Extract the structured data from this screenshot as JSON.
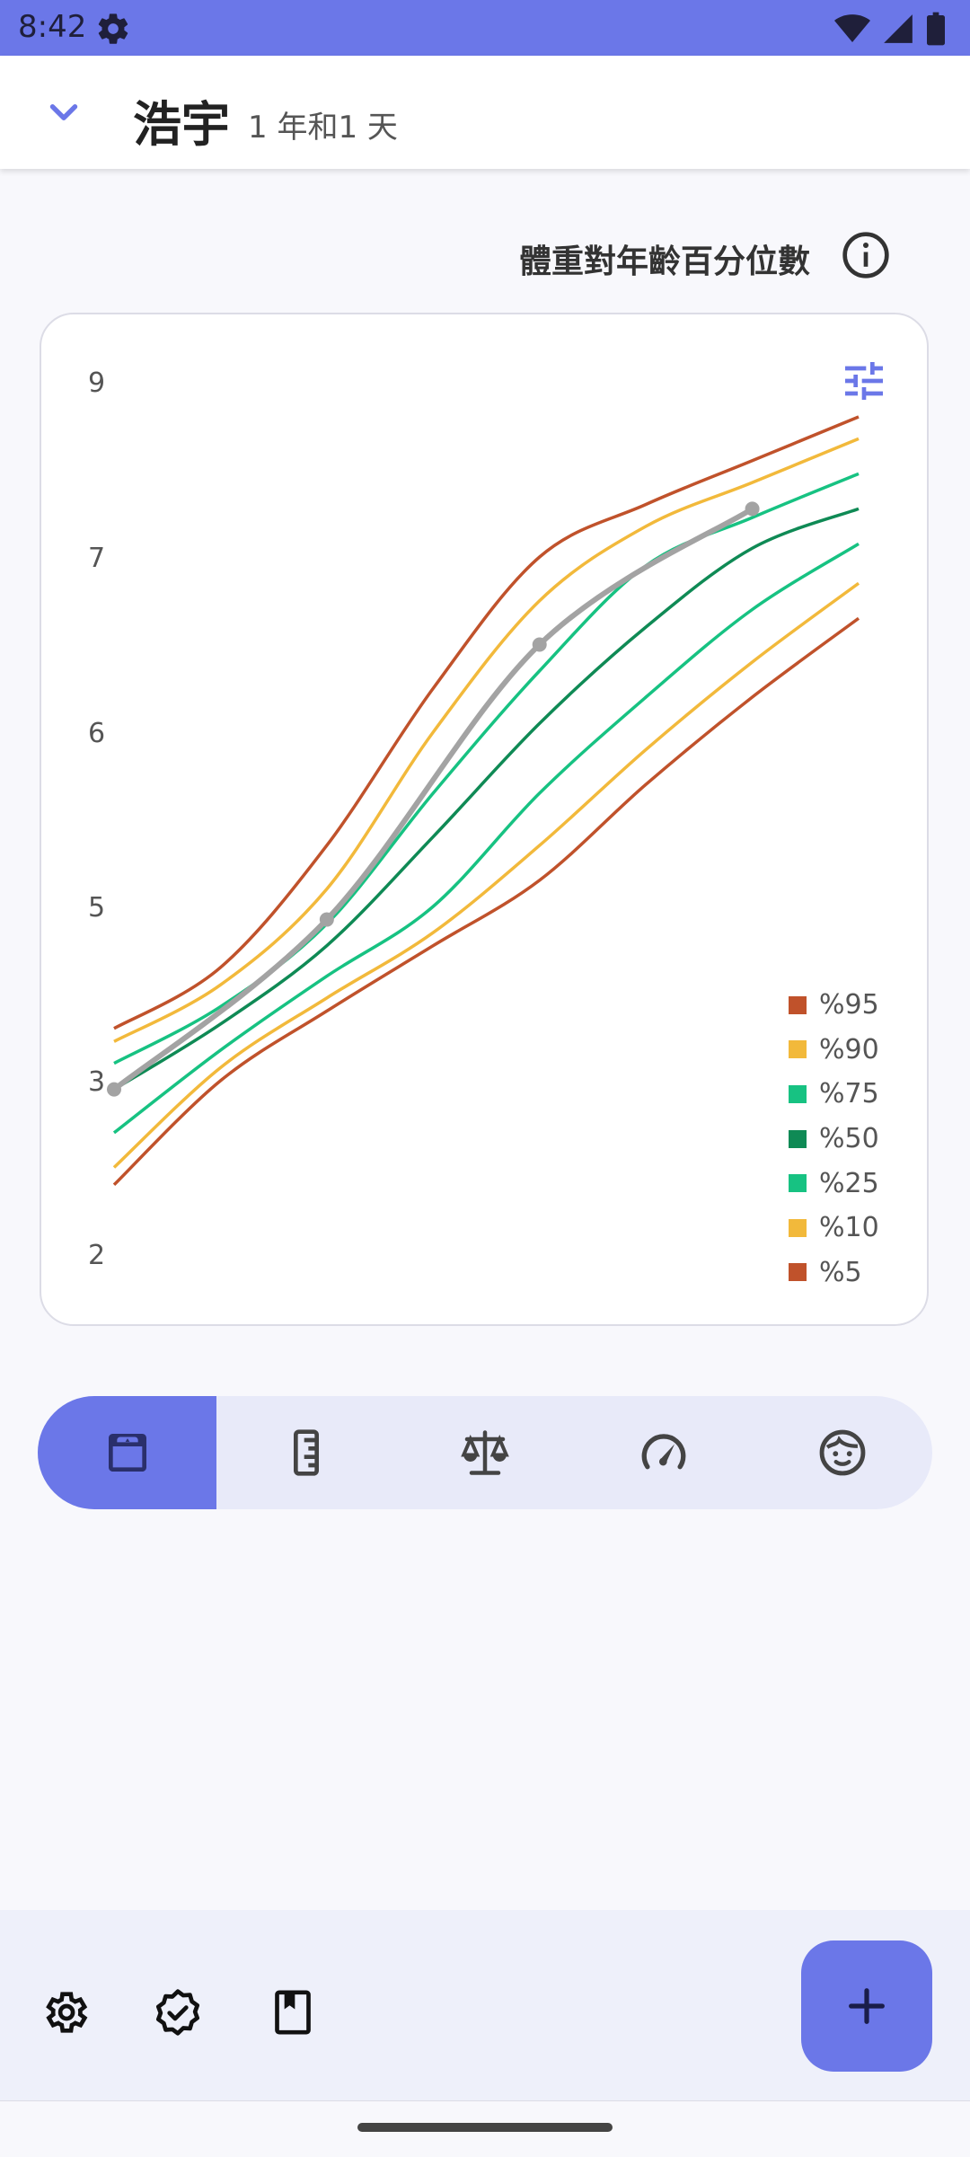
{
  "status_bar": {
    "time": "8:42"
  },
  "app_bar": {
    "child_name": "浩宇",
    "child_age": "1 年和1 天"
  },
  "chart_header": {
    "title": "體重對年齡百分位數"
  },
  "chart_data": {
    "type": "line",
    "title": "體重對年齡百分位數",
    "xlabel": "",
    "ylabel": "",
    "y_tick_labels": [
      "9",
      "7",
      "6",
      "5",
      "3",
      "2"
    ],
    "grid": false,
    "legend_placement": "bottom-right",
    "x": [
      0,
      1,
      2,
      3,
      4,
      5,
      6,
      7
    ],
    "series": [
      {
        "name": "%95",
        "color": "#c0522b",
        "values": [
          3.6,
          4.3,
          5.35,
          6.25,
          7.0,
          7.6,
          8.1,
          8.6
        ]
      },
      {
        "name": "%90",
        "color": "#f2b93b",
        "values": [
          3.45,
          4.1,
          5.1,
          6.0,
          6.75,
          7.35,
          7.85,
          8.35
        ]
      },
      {
        "name": "%75",
        "color": "#17c282",
        "values": [
          3.2,
          3.85,
          4.8,
          5.65,
          6.35,
          6.95,
          7.45,
          7.95
        ]
      },
      {
        "name": "%50",
        "color": "#0f8a55",
        "values": [
          2.95,
          3.65,
          4.55,
          5.4,
          6.05,
          6.6,
          7.1,
          7.55
        ]
      },
      {
        "name": "%25",
        "color": "#17c282",
        "values": [
          2.7,
          3.35,
          4.2,
          5.0,
          5.65,
          6.2,
          6.7,
          7.15
        ]
      },
      {
        "name": "%10",
        "color": "#f2b93b",
        "values": [
          2.5,
          3.15,
          3.95,
          4.7,
          5.35,
          5.9,
          6.4,
          6.85
        ]
      },
      {
        "name": "%5",
        "color": "#c0522b",
        "values": [
          2.4,
          3.0,
          3.8,
          4.55,
          5.15,
          5.7,
          6.2,
          6.65
        ]
      }
    ],
    "measurements": {
      "name": "",
      "color": "#a3a3a3",
      "x": [
        0,
        2,
        4,
        6
      ],
      "values": [
        2.95,
        4.85,
        6.5,
        7.55
      ]
    }
  },
  "tabs": [
    {
      "icon": "weight-scale-icon",
      "active": true
    },
    {
      "icon": "ruler-icon",
      "active": false
    },
    {
      "icon": "balance-icon",
      "active": false
    },
    {
      "icon": "speedometer-icon",
      "active": false
    },
    {
      "icon": "baby-face-icon",
      "active": false
    }
  ],
  "bottom_bar": {
    "icons": [
      "settings-icon",
      "verified-badge-icon",
      "book-icon"
    ],
    "fab_icon": "add-icon"
  },
  "colors": {
    "accent": "#6b77e8",
    "tab_bg": "#e8eaf9"
  }
}
